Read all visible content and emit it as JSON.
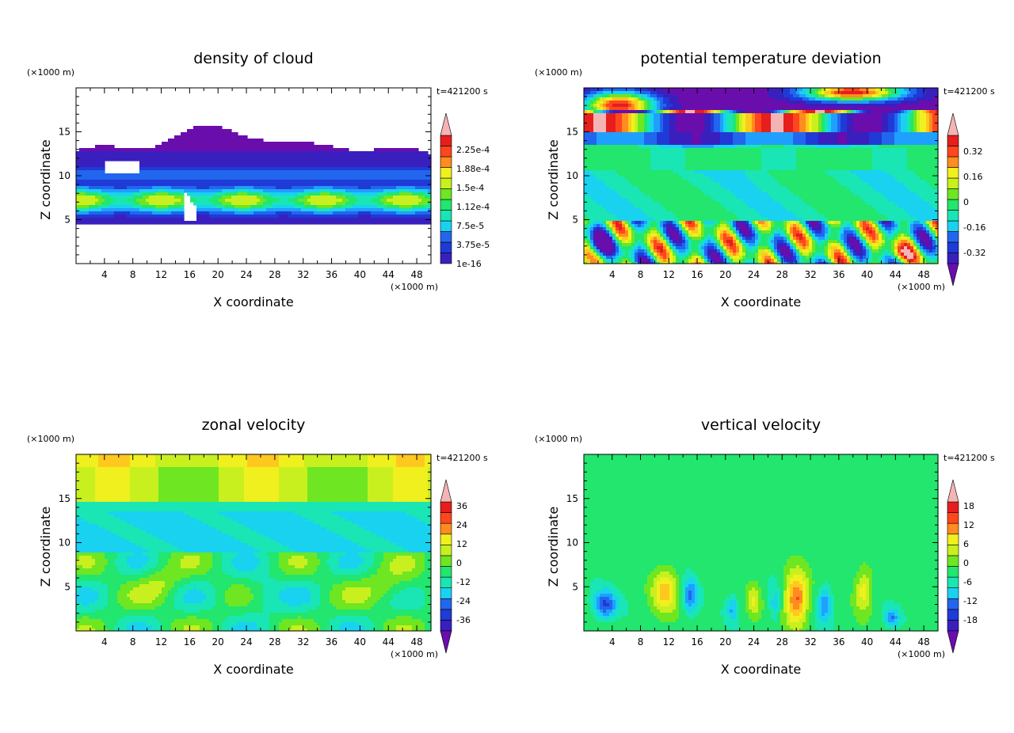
{
  "chart_data": [
    {
      "type": "heatmap",
      "title": "density of cloud",
      "xlabel": "X coordinate",
      "ylabel": "Z coordinate",
      "x_unit": "(×1000 m)",
      "y_unit": "(×1000 m)",
      "time_label": "t=421200 s",
      "xlim": [
        0,
        50
      ],
      "ylim": [
        0,
        20
      ],
      "x_ticks": [
        4,
        8,
        12,
        16,
        20,
        24,
        28,
        32,
        36,
        40,
        44,
        48
      ],
      "y_ticks": [
        5,
        10,
        15
      ],
      "colorbar_labels": [
        "2.25e-4",
        "1.88e-4",
        "1.5e-4",
        "1.12e-4",
        "7.5e-5",
        "3.75e-5",
        "1e-16"
      ],
      "colorbar_arrows": "top",
      "pattern": "cloud"
    },
    {
      "type": "heatmap",
      "title": "potential temperature deviation",
      "xlabel": "X coordinate",
      "ylabel": "Z coordinate",
      "x_unit": "(×1000 m)",
      "y_unit": "(×1000 m)",
      "time_label": "t=421200 s",
      "xlim": [
        0,
        50
      ],
      "ylim": [
        0,
        20
      ],
      "x_ticks": [
        4,
        8,
        12,
        16,
        20,
        24,
        28,
        32,
        36,
        40,
        44,
        48
      ],
      "y_ticks": [
        5,
        10,
        15
      ],
      "colorbar_labels": [
        "0.32",
        "0.16",
        "0",
        "-0.16",
        "-0.32"
      ],
      "colorbar_arrows": "both",
      "pattern": "theta"
    },
    {
      "type": "heatmap",
      "title": "zonal velocity",
      "xlabel": "X coordinate",
      "ylabel": "Z coordinate",
      "x_unit": "(×1000 m)",
      "y_unit": "(×1000 m)",
      "time_label": "t=421200 s",
      "xlim": [
        0,
        50
      ],
      "ylim": [
        0,
        20
      ],
      "x_ticks": [
        4,
        8,
        12,
        16,
        20,
        24,
        28,
        32,
        36,
        40,
        44,
        48
      ],
      "y_ticks": [
        5,
        10,
        15
      ],
      "colorbar_labels": [
        "36",
        "24",
        "12",
        "0",
        "-12",
        "-24",
        "-36"
      ],
      "colorbar_arrows": "both",
      "pattern": "zonal"
    },
    {
      "type": "heatmap",
      "title": "vertical velocity",
      "xlabel": "X coordinate",
      "ylabel": "Z coordinate",
      "x_unit": "(×1000 m)",
      "y_unit": "(×1000 m)",
      "time_label": "t=421200 s",
      "xlim": [
        0,
        50
      ],
      "ylim": [
        0,
        20
      ],
      "x_ticks": [
        4,
        8,
        12,
        16,
        20,
        24,
        28,
        32,
        36,
        40,
        44,
        48
      ],
      "y_ticks": [
        5,
        10,
        15
      ],
      "colorbar_labels": [
        "18",
        "12",
        "6",
        "0",
        "-6",
        "-12",
        "-18"
      ],
      "colorbar_arrows": "both",
      "pattern": "vertical"
    }
  ],
  "palette": [
    "#6a0dad",
    "#3a1fbf",
    "#1f3ad6",
    "#2266ee",
    "#1fa0ff",
    "#19d2f0",
    "#19e6b4",
    "#22e66e",
    "#6ee622",
    "#c8f01e",
    "#f0f01e",
    "#ffc81e",
    "#ff8c1e",
    "#ff461e",
    "#e61e1e",
    "#f5b4b4"
  ]
}
